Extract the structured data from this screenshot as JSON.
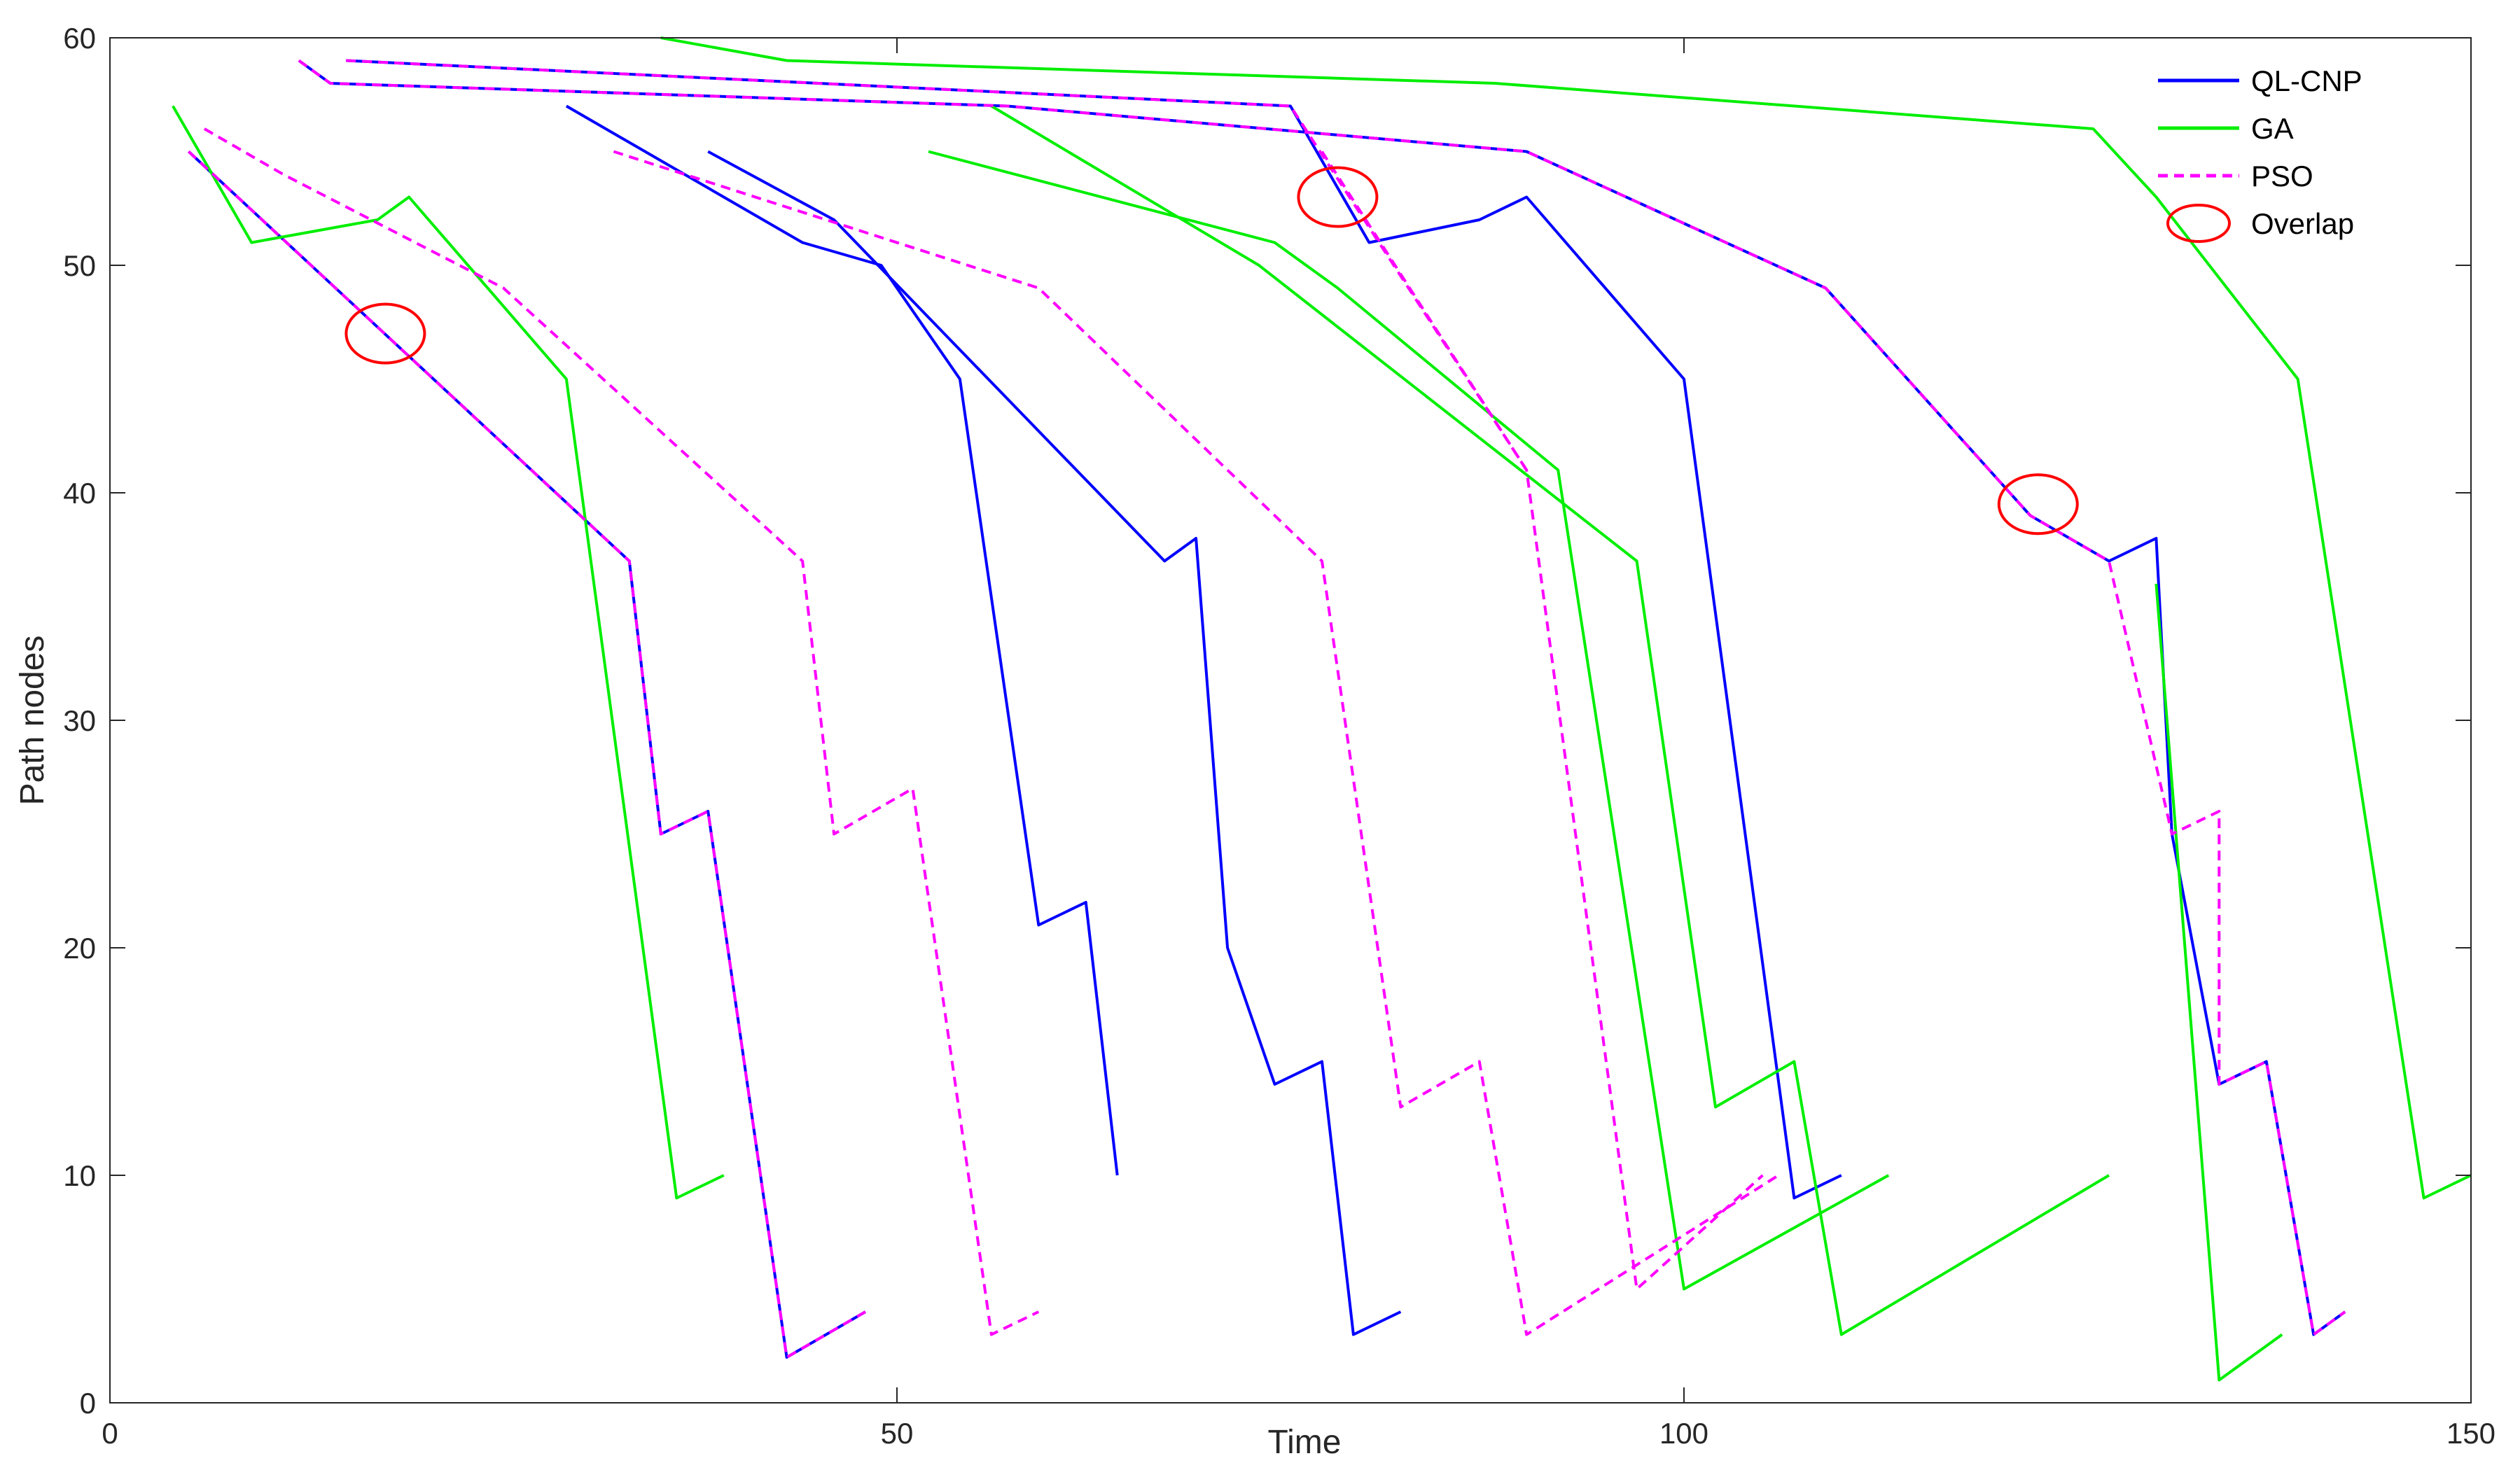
{
  "chart_data": {
    "type": "line",
    "title": "",
    "xlabel": "Time",
    "ylabel": "Path nodes",
    "xlim": [
      0,
      150
    ],
    "ylim": [
      0,
      60
    ],
    "xticks": [
      0,
      50,
      100,
      150
    ],
    "yticks": [
      0,
      10,
      20,
      30,
      40,
      50,
      60
    ],
    "grid": false,
    "legend_position": "top-right",
    "series": [
      {
        "name": "QL-CNP",
        "color": "#0000ff",
        "dash": "solid",
        "lines": [
          [
            [
              5,
              55
            ],
            [
              33,
              37
            ],
            [
              35,
              25
            ],
            [
              38,
              26
            ],
            [
              43,
              2
            ],
            [
              48,
              4
            ]
          ],
          [
            [
              15,
              59
            ],
            [
              75,
              57
            ],
            [
              80,
              51
            ],
            [
              87,
              52
            ],
            [
              90,
              53
            ],
            [
              100,
              45
            ],
            [
              107,
              9
            ],
            [
              110,
              10
            ]
          ],
          [
            [
              29,
              57
            ],
            [
              44,
              51
            ],
            [
              49,
              50
            ],
            [
              54,
              45
            ],
            [
              59,
              21
            ],
            [
              62,
              22
            ],
            [
              64,
              10
            ]
          ],
          [
            [
              38,
              55
            ],
            [
              46,
              52
            ],
            [
              53,
              47
            ],
            [
              67,
              37
            ],
            [
              69,
              38
            ],
            [
              71,
              20
            ],
            [
              74,
              14
            ],
            [
              77,
              15
            ],
            [
              79,
              3
            ],
            [
              82,
              4
            ]
          ],
          [
            [
              12,
              59
            ],
            [
              14,
              58
            ],
            [
              57,
              57
            ],
            [
              90,
              55
            ],
            [
              109,
              49
            ],
            [
              122,
              39
            ],
            [
              127,
              37
            ],
            [
              130,
              38
            ],
            [
              131,
              25
            ],
            [
              134,
              14
            ],
            [
              137,
              15
            ],
            [
              140,
              3
            ],
            [
              142,
              4
            ]
          ]
        ]
      },
      {
        "name": "GA",
        "color": "#00ee00",
        "dash": "solid",
        "lines": [
          [
            [
              4,
              57
            ],
            [
              9,
              51
            ],
            [
              17,
              52
            ],
            [
              19,
              53
            ],
            [
              29,
              45
            ],
            [
              36,
              9
            ],
            [
              39,
              10
            ]
          ],
          [
            [
              35,
              60
            ],
            [
              43,
              59
            ],
            [
              88,
              58
            ],
            [
              126,
              56
            ],
            [
              130,
              53
            ],
            [
              139,
              45
            ],
            [
              147,
              9
            ],
            [
              150,
              10
            ]
          ],
          [
            [
              52,
              55
            ],
            [
              74,
              51
            ],
            [
              78,
              49
            ],
            [
              92,
              41
            ],
            [
              100,
              5
            ],
            [
              113,
              10
            ]
          ],
          [
            [
              56,
              57
            ],
            [
              73,
              50
            ],
            [
              97,
              37
            ],
            [
              102,
              13
            ],
            [
              107,
              15
            ],
            [
              110,
              3
            ],
            [
              127,
              10
            ]
          ],
          [
            [
              130,
              36
            ],
            [
              134,
              1
            ],
            [
              138,
              3
            ]
          ]
        ]
      },
      {
        "name": "PSO",
        "color": "#ff00ff",
        "dash": "dashed",
        "lines": [
          [
            [
              6,
              56
            ],
            [
              11,
              54
            ],
            [
              25,
              49
            ],
            [
              44,
              37
            ],
            [
              46,
              25
            ],
            [
              51,
              27
            ],
            [
              56,
              3
            ],
            [
              59,
              4
            ]
          ],
          [
            [
              32,
              55
            ],
            [
              59,
              49
            ],
            [
              77,
              37
            ],
            [
              82,
              13
            ],
            [
              87,
              15
            ],
            [
              90,
              3
            ],
            [
              106,
              10
            ]
          ],
          [
            [
              77,
              55
            ],
            [
              90,
              41
            ],
            [
              97,
              5
            ],
            [
              105,
              10
            ]
          ],
          [
            [
              5,
              55
            ],
            [
              33,
              37
            ],
            [
              35,
              25
            ],
            [
              38,
              26
            ],
            [
              43,
              2
            ],
            [
              48,
              4
            ]
          ],
          [
            [
              15,
              59
            ],
            [
              75,
              57
            ],
            [
              90,
              41
            ]
          ],
          [
            [
              12,
              59
            ],
            [
              14,
              58
            ],
            [
              57,
              57
            ],
            [
              90,
              55
            ],
            [
              109,
              49
            ],
            [
              122,
              39
            ],
            [
              127,
              37
            ],
            [
              131,
              25
            ],
            [
              134,
              26
            ],
            [
              134,
              14
            ],
            [
              137,
              15
            ],
            [
              140,
              3
            ],
            [
              142,
              4
            ]
          ]
        ]
      }
    ],
    "overlap_markers": [
      [
        17.5,
        47
      ],
      [
        78,
        53
      ],
      [
        122.5,
        39.5
      ]
    ],
    "overlap_color": "#ff0000",
    "legend": {
      "entries": [
        {
          "label": "QL-CNP",
          "color": "#0000ff",
          "dash": "solid"
        },
        {
          "label": "GA",
          "color": "#00ee00",
          "dash": "solid"
        },
        {
          "label": "PSO",
          "color": "#ff00ff",
          "dash": "dashed"
        },
        {
          "label": "Overlap",
          "color": "#ff0000",
          "marker": "ellipse"
        }
      ]
    }
  }
}
